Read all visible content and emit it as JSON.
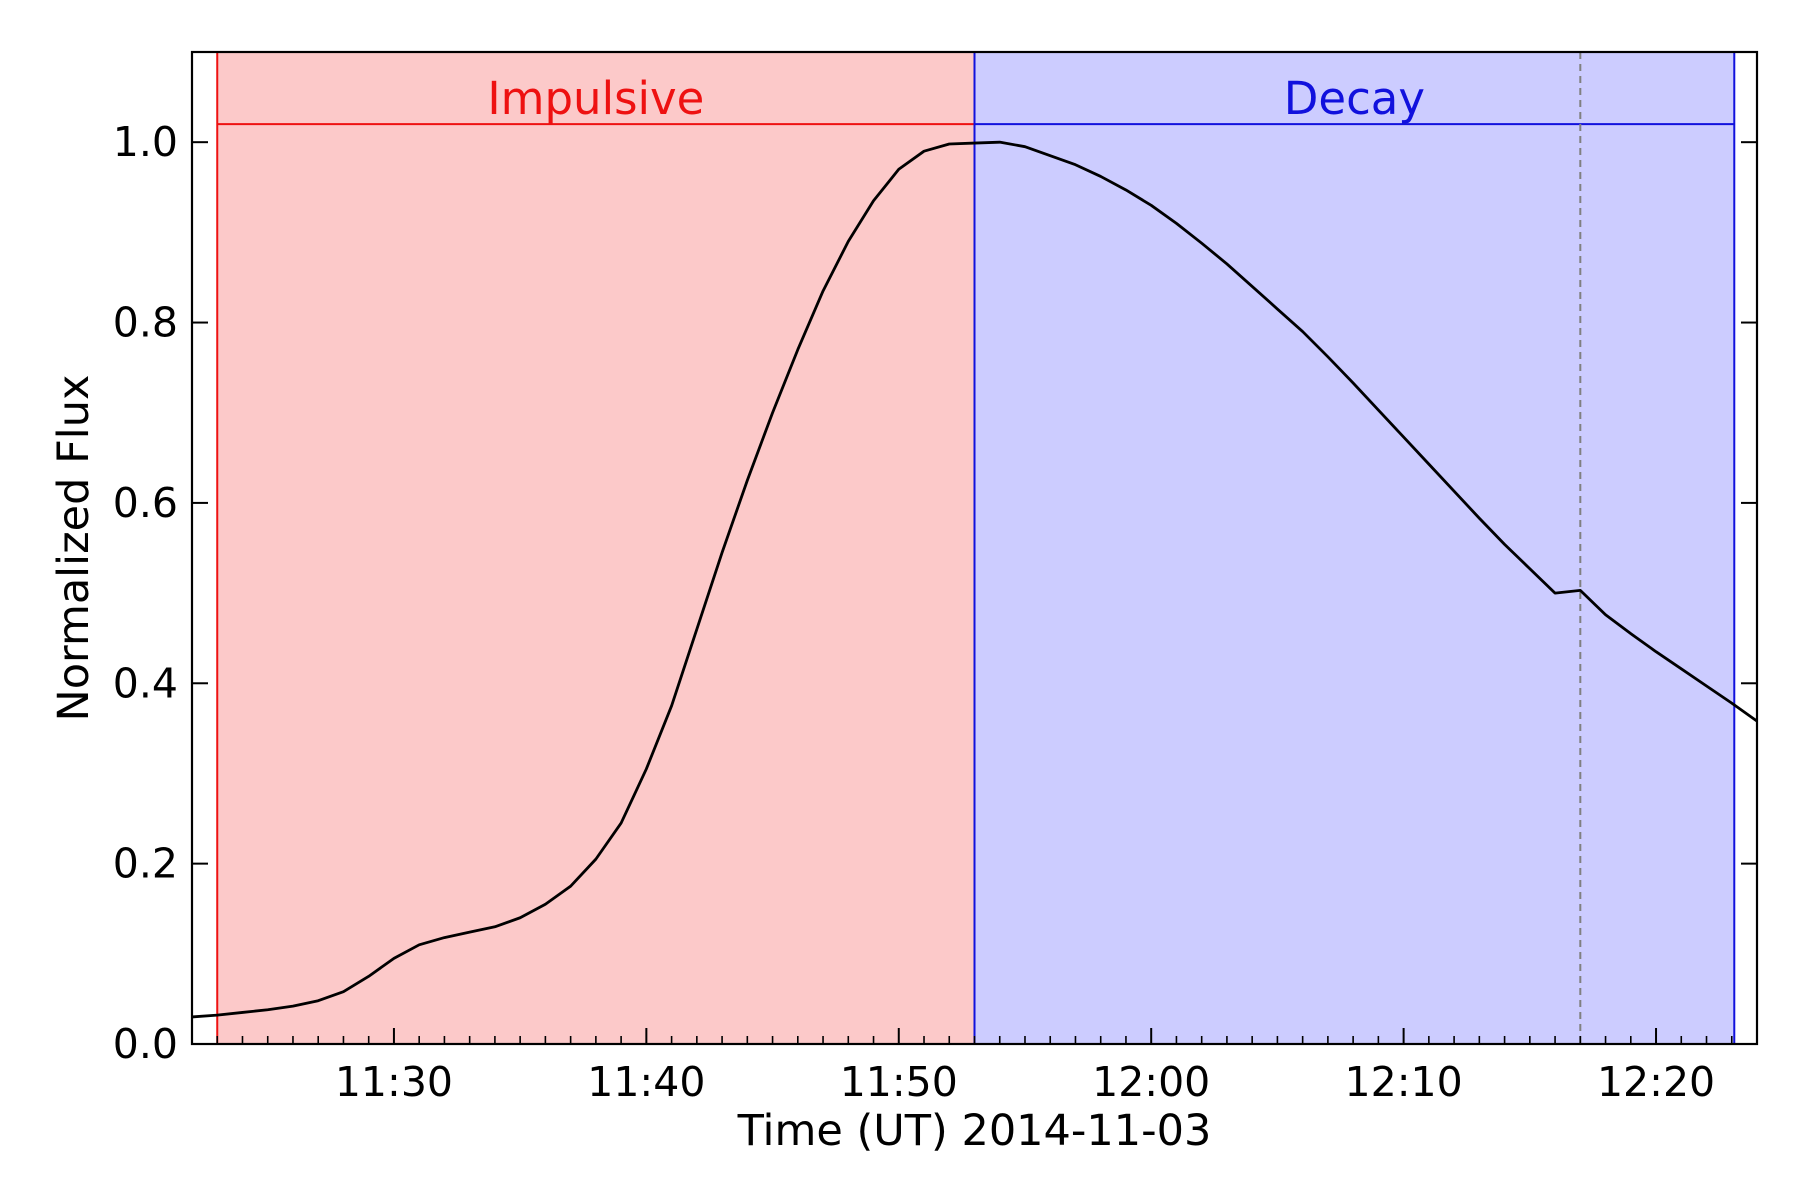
{
  "chart_data": {
    "type": "line",
    "title": "",
    "xlabel": "Time (UT) 2014-11-03",
    "ylabel": "Normalized Flux",
    "x_unit": "minutes after 11:00 UT",
    "xlim": [
      22.0,
      84.0
    ],
    "ylim": [
      0.0,
      1.1
    ],
    "x_ticks": [
      {
        "value": 30,
        "label": "11:30"
      },
      {
        "value": 40,
        "label": "11:40"
      },
      {
        "value": 50,
        "label": "11:50"
      },
      {
        "value": 60,
        "label": "12:00"
      },
      {
        "value": 70,
        "label": "12:10"
      },
      {
        "value": 80,
        "label": "12:20"
      }
    ],
    "y_ticks": [
      {
        "value": 0.0,
        "label": "0.0"
      },
      {
        "value": 0.2,
        "label": "0.2"
      },
      {
        "value": 0.4,
        "label": "0.4"
      },
      {
        "value": 0.6,
        "label": "0.6"
      },
      {
        "value": 0.8,
        "label": "0.8"
      },
      {
        "value": 1.0,
        "label": "1.0"
      }
    ],
    "grid": false,
    "phases": [
      {
        "label": "Impulsive",
        "start": 23.0,
        "end": 53.0,
        "fill": "#fcc9c9",
        "color": "#ee1111"
      },
      {
        "label": "Decay",
        "start": 53.0,
        "end": 83.1,
        "fill": "#ccccff",
        "color": "#1111dd"
      }
    ],
    "phase_label_y": 1.02,
    "dashed_marker_x": 77.0,
    "series": [
      {
        "color": "#000000",
        "x": [
          22.0,
          23.0,
          24.0,
          25.0,
          26.0,
          27.0,
          28.0,
          29.0,
          30.0,
          31.0,
          32.0,
          33.0,
          34.0,
          35.0,
          36.0,
          37.0,
          38.0,
          39.0,
          40.0,
          41.0,
          42.0,
          43.0,
          44.0,
          45.0,
          46.0,
          47.0,
          48.0,
          49.0,
          50.0,
          51.0,
          52.0,
          53.0,
          54.0,
          55.0,
          56.0,
          57.0,
          58.0,
          59.0,
          60.0,
          61.0,
          62.0,
          63.0,
          64.0,
          65.0,
          66.0,
          67.0,
          68.0,
          69.0,
          70.0,
          71.0,
          72.0,
          73.0,
          74.0,
          75.0,
          76.0,
          77.0,
          78.0,
          79.0,
          80.0,
          81.0,
          82.0,
          83.0,
          84.0
        ],
        "y": [
          0.03,
          0.032,
          0.035,
          0.038,
          0.042,
          0.048,
          0.058,
          0.075,
          0.095,
          0.11,
          0.118,
          0.124,
          0.13,
          0.14,
          0.155,
          0.175,
          0.205,
          0.245,
          0.305,
          0.375,
          0.46,
          0.545,
          0.625,
          0.7,
          0.77,
          0.835,
          0.89,
          0.935,
          0.97,
          0.99,
          0.998,
          0.999,
          1.0,
          0.995,
          0.985,
          0.975,
          0.962,
          0.947,
          0.93,
          0.91,
          0.888,
          0.865,
          0.84,
          0.815,
          0.79,
          0.762,
          0.733,
          0.703,
          0.673,
          0.643,
          0.613,
          0.583,
          0.554,
          0.527,
          0.5,
          0.503,
          0.476,
          0.455,
          0.435,
          0.416,
          0.397,
          0.378,
          0.358
        ]
      }
    ]
  }
}
